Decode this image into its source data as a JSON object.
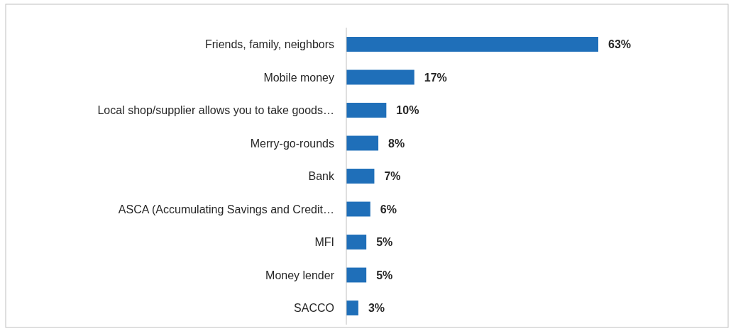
{
  "chart_data": {
    "type": "bar",
    "orientation": "horizontal",
    "categories": [
      "Friends, family, neighbors",
      "Mobile money",
      "Local shop/supplier allows you to take goods…",
      "Merry-go-rounds",
      "Bank",
      "ASCA (Accumulating Savings and Credit…",
      "MFI",
      "Money lender",
      "SACCO"
    ],
    "values": [
      63,
      17,
      10,
      8,
      7,
      6,
      5,
      5,
      3
    ],
    "value_labels": [
      "63%",
      "17%",
      "10%",
      "8%",
      "7%",
      "6%",
      "5%",
      "5%",
      "3%"
    ],
    "color": "#1f6fb9"
  }
}
